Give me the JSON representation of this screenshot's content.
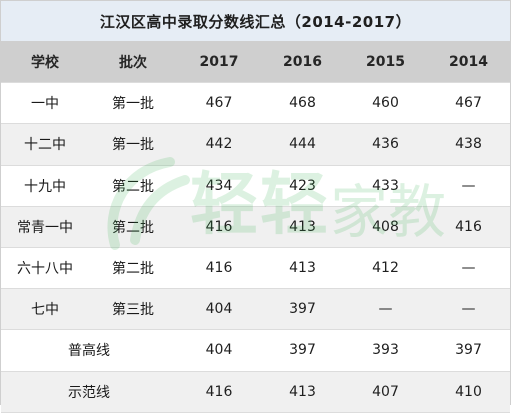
{
  "title": "江汉区高中录取分数线汇总（2014-2017）",
  "columns": [
    "学校",
    "批次",
    "2017",
    "2016",
    "2015",
    "2014"
  ],
  "rows": [
    {
      "school": "一中",
      "batch": "第一批",
      "y2017": "467",
      "y2016": "468",
      "y2015": "460",
      "y2014": "467"
    },
    {
      "school": "十二中",
      "batch": "第一批",
      "y2017": "442",
      "y2016": "444",
      "y2015": "436",
      "y2014": "438"
    },
    {
      "school": "十九中",
      "batch": "第二批",
      "y2017": "434",
      "y2016": "423",
      "y2015": "433",
      "y2014": "—"
    },
    {
      "school": "常青一中",
      "batch": "第二批",
      "y2017": "416",
      "y2016": "413",
      "y2015": "408",
      "y2014": "416"
    },
    {
      "school": "六十八中",
      "batch": "第二批",
      "y2017": "416",
      "y2016": "413",
      "y2015": "412",
      "y2014": "—"
    },
    {
      "school": "七中",
      "batch": "第三批",
      "y2017": "404",
      "y2016": "397",
      "y2015": "—",
      "y2014": "—"
    }
  ],
  "summary_rows": [
    {
      "label": "普高线",
      "y2017": "404",
      "y2016": "397",
      "y2015": "393",
      "y2014": "397"
    },
    {
      "label": "示范线",
      "y2017": "416",
      "y2016": "413",
      "y2015": "407",
      "y2014": "410"
    }
  ],
  "watermark": {
    "text": "轻轻家教",
    "color": "#2fae4a"
  }
}
